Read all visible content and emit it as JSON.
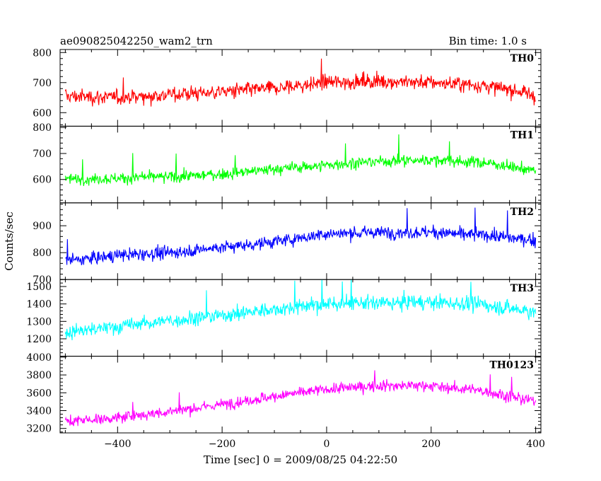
{
  "header": {
    "title": "ae090825042250_wam2_trn",
    "bin_time": "Bin time: 1.0 s"
  },
  "axes": {
    "xlabel": "Time [sec] 0 = 2009/08/25 04:22:50",
    "ylabel": "Counts/sec"
  },
  "chart_data": {
    "type": "line",
    "x_range": [
      -510,
      410
    ],
    "x_ticks": [
      -400,
      -200,
      0,
      200,
      400
    ],
    "x_step": 1.0,
    "grid": false,
    "panels": [
      {
        "name": "TH0",
        "color": "#ff0000",
        "ylim": [
          555,
          810
        ],
        "yticks": [
          600,
          700,
          800
        ],
        "y_values_approx": {
          "x": [
            -500,
            -400,
            -300,
            -200,
            -100,
            0,
            100,
            200,
            300,
            400
          ],
          "y": [
            655,
            650,
            660,
            670,
            680,
            700,
            705,
            700,
            690,
            660
          ]
        },
        "noise": 32
      },
      {
        "name": "TH1",
        "color": "#00ff00",
        "ylim": [
          510,
          805
        ],
        "yticks": [
          600,
          700,
          800
        ],
        "y_values_approx": {
          "x": [
            -500,
            -400,
            -300,
            -200,
            -100,
            0,
            100,
            200,
            300,
            400
          ],
          "y": [
            600,
            605,
            610,
            620,
            640,
            655,
            670,
            675,
            665,
            635
          ]
        },
        "noise": 28
      },
      {
        "name": "TH2",
        "color": "#0000ff",
        "ylim": [
          700,
          985
        ],
        "yticks": [
          700,
          800,
          900
        ],
        "y_values_approx": {
          "x": [
            -500,
            -400,
            -300,
            -200,
            -100,
            0,
            100,
            200,
            300,
            400
          ],
          "y": [
            770,
            790,
            800,
            820,
            840,
            870,
            875,
            875,
            865,
            845
          ]
        },
        "noise": 30
      },
      {
        "name": "TH3",
        "color": "#00ffff",
        "ylim": [
          1100,
          1540
        ],
        "yticks": [
          1200,
          1300,
          1400,
          1500
        ],
        "y_values_approx": {
          "x": [
            -500,
            -400,
            -300,
            -200,
            -100,
            0,
            100,
            200,
            300,
            400
          ],
          "y": [
            1235,
            1270,
            1305,
            1335,
            1370,
            1400,
            1405,
            1410,
            1395,
            1355
          ]
        },
        "noise": 55
      },
      {
        "name": "TH0123",
        "color": "#ff00ff",
        "ylim": [
          3150,
          4010
        ],
        "yticks": [
          3200,
          3400,
          3600,
          3800,
          4000
        ],
        "y_values_approx": {
          "x": [
            -500,
            -400,
            -300,
            -200,
            -100,
            0,
            100,
            200,
            300,
            400
          ],
          "y": [
            3280,
            3320,
            3390,
            3470,
            3560,
            3640,
            3680,
            3680,
            3620,
            3500
          ]
        },
        "noise": 80
      }
    ]
  }
}
